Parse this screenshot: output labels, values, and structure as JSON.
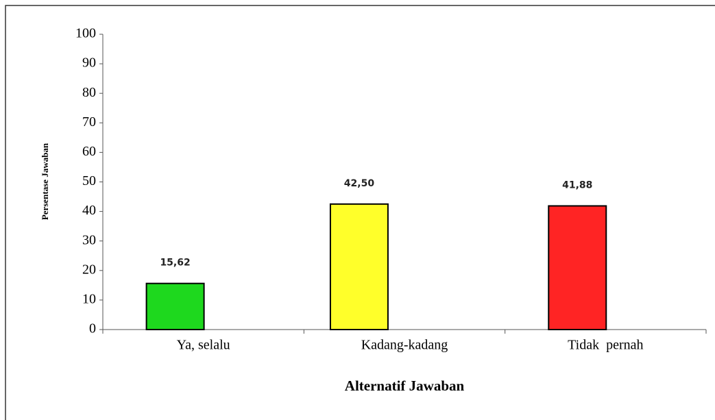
{
  "chart_data": {
    "type": "bar",
    "categories": [
      "Ya, selalu",
      "Kadang-kadang",
      "Tidak  pernah"
    ],
    "values": [
      15.62,
      42.5,
      41.88
    ],
    "value_labels": [
      "15,62",
      "42,50",
      "41,88"
    ],
    "colors": [
      "#1ed81e",
      "#ffff2a",
      "#ff2424"
    ],
    "x_label": "Alternatif Jawaban",
    "y_label": "Persentase Jawaban",
    "ylim": [
      0,
      100
    ],
    "yticks": [
      0,
      10,
      20,
      30,
      40,
      50,
      60,
      70,
      80,
      90,
      100
    ],
    "grid": false
  }
}
